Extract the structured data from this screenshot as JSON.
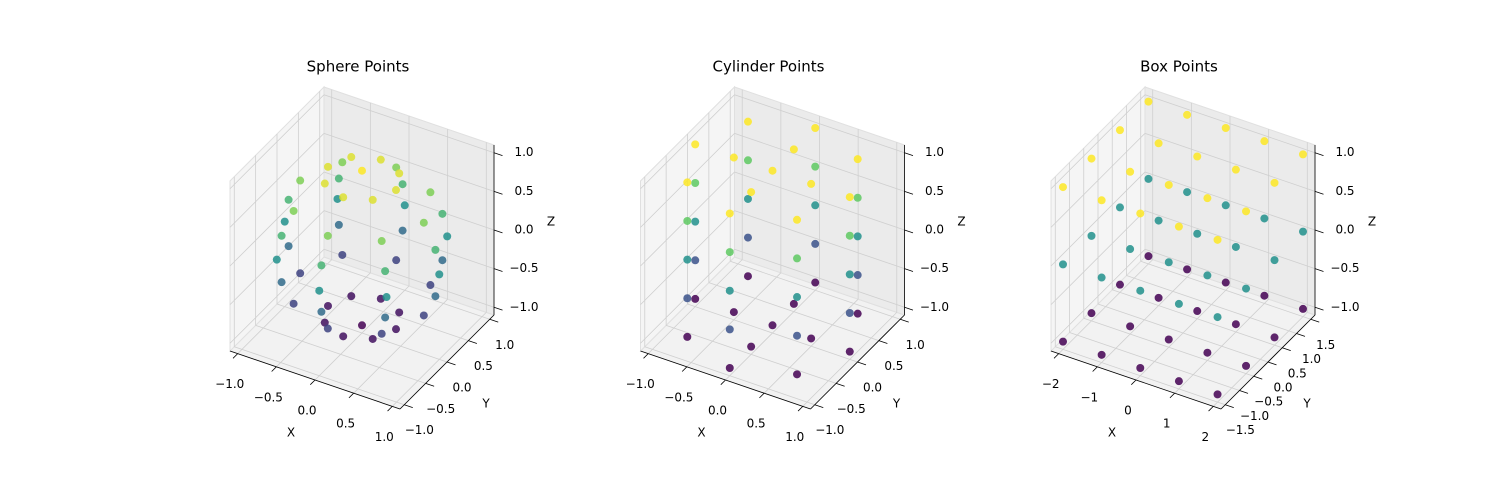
{
  "chart_data": [
    {
      "type": "scatter3d",
      "title": "Sphere Points",
      "xlabel": "X",
      "ylabel": "Y",
      "zlabel": "Z",
      "colormap": [
        "#440154",
        "#3b528b",
        "#21918c",
        "#5ec962",
        "#fde725"
      ],
      "xlim": [
        -1.1,
        1.1
      ],
      "ylim": [
        -1.1,
        1.1
      ],
      "zlim": [
        -1.1,
        1.1
      ],
      "xticks": [
        {
          "value": -1,
          "label": "−1.0"
        },
        {
          "value": -0.5,
          "label": "−0.5"
        },
        {
          "value": 0,
          "label": "0.0"
        },
        {
          "value": 0.5,
          "label": "0.5"
        },
        {
          "value": 1,
          "label": "1.0"
        }
      ],
      "yticks": [
        {
          "value": -1,
          "label": "−1.0"
        },
        {
          "value": -0.5,
          "label": "−0.5"
        },
        {
          "value": 0,
          "label": "0.0"
        },
        {
          "value": 0.5,
          "label": "0.5"
        },
        {
          "value": 1,
          "label": "1.0"
        }
      ],
      "zticks": [
        {
          "value": -1,
          "label": "−1.0"
        },
        {
          "value": -0.5,
          "label": "−0.5"
        },
        {
          "value": 0,
          "label": "0.0"
        },
        {
          "value": 0.5,
          "label": "0.5"
        },
        {
          "value": 1,
          "label": "1.0"
        }
      ],
      "x": [
        0.44,
        0.31,
        0,
        -0.31,
        -0.44,
        -0.31,
        0,
        0.31,
        0.8,
        0.57,
        0,
        -0.57,
        -0.8,
        -0.57,
        0,
        0.57,
        0.95,
        0.67,
        0,
        -0.67,
        -0.95,
        -0.67,
        0,
        0.67,
        1,
        0.71,
        0,
        -0.71,
        -1,
        -0.71,
        0,
        0.71,
        0.95,
        0.67,
        0,
        -0.67,
        -0.95,
        -0.67,
        0,
        0.67,
        0.8,
        0.57,
        0,
        -0.57,
        -0.8,
        -0.57,
        0,
        0.57,
        0.44,
        0.31,
        0,
        -0.31,
        -0.44,
        -0.31,
        0,
        0.31,
        0,
        0
      ],
      "y": [
        0,
        0.31,
        0.44,
        0.31,
        0,
        -0.31,
        -0.44,
        -0.31,
        0,
        0.57,
        0.8,
        0.57,
        0,
        -0.57,
        -0.8,
        -0.57,
        0,
        0.67,
        0.95,
        0.67,
        0,
        -0.67,
        -0.95,
        -0.67,
        0,
        0.71,
        1,
        0.71,
        0,
        -0.71,
        -1,
        -0.71,
        0,
        0.67,
        0.95,
        0.67,
        0,
        -0.67,
        -0.95,
        -0.67,
        0,
        0.57,
        0.8,
        0.57,
        0,
        -0.57,
        -0.8,
        -0.57,
        0,
        0.31,
        0.44,
        0.31,
        0,
        -0.31,
        -0.44,
        -0.31,
        0,
        0
      ],
      "z": [
        -0.9,
        -0.9,
        -0.9,
        -0.9,
        -0.9,
        -0.9,
        -0.9,
        -0.9,
        -0.6,
        -0.6,
        -0.6,
        -0.6,
        -0.6,
        -0.6,
        -0.6,
        -0.6,
        -0.3,
        -0.3,
        -0.3,
        -0.3,
        -0.3,
        -0.3,
        -0.3,
        -0.3,
        0,
        0,
        0,
        0,
        0,
        0,
        0,
        0,
        0.3,
        0.3,
        0.3,
        0.3,
        0.3,
        0.3,
        0.3,
        0.3,
        0.6,
        0.6,
        0.6,
        0.6,
        0.6,
        0.6,
        0.6,
        0.6,
        0.9,
        0.9,
        0.9,
        0.9,
        0.9,
        0.9,
        0.9,
        0.9,
        -1,
        1
      ]
    },
    {
      "type": "scatter3d",
      "title": "Cylinder Points",
      "xlabel": "X",
      "ylabel": "Y",
      "zlabel": "Z",
      "colormap": [
        "#440154",
        "#3b528b",
        "#21918c",
        "#5ec962",
        "#fde725"
      ],
      "xlim": [
        -1.1,
        1.1
      ],
      "ylim": [
        -1.1,
        1.1
      ],
      "zlim": [
        -1.1,
        1.1
      ],
      "xticks": [
        {
          "value": -1,
          "label": "−1.0"
        },
        {
          "value": -0.5,
          "label": "−0.5"
        },
        {
          "value": 0,
          "label": "0.0"
        },
        {
          "value": 0.5,
          "label": "0.5"
        },
        {
          "value": 1,
          "label": "1.0"
        }
      ],
      "yticks": [
        {
          "value": -1,
          "label": "−1.0"
        },
        {
          "value": -0.5,
          "label": "−0.5"
        },
        {
          "value": 0,
          "label": "0.0"
        },
        {
          "value": 0.5,
          "label": "0.5"
        },
        {
          "value": 1,
          "label": "1.0"
        }
      ],
      "zticks": [
        {
          "value": -1,
          "label": "−1.0"
        },
        {
          "value": -0.5,
          "label": "−0.5"
        },
        {
          "value": 0,
          "label": "0.0"
        },
        {
          "value": 0.5,
          "label": "0.5"
        },
        {
          "value": 1,
          "label": "1.0"
        }
      ],
      "x": [
        1,
        0.71,
        0,
        -0.71,
        -1,
        -0.71,
        0,
        0.71,
        1,
        0.71,
        0,
        -0.71,
        -1,
        -0.71,
        0,
        0.71,
        1,
        0.71,
        0,
        -0.71,
        -1,
        -0.71,
        0,
        0.71,
        1,
        0.71,
        0,
        -0.71,
        -1,
        -0.71,
        0,
        0.71,
        1,
        0.71,
        0,
        -0.71,
        -1,
        -0.71,
        0,
        0.71,
        0.5,
        0,
        -0.5,
        0,
        0,
        0.5,
        0,
        -0.5,
        0,
        0
      ],
      "y": [
        0,
        0.71,
        1,
        0.71,
        0,
        -0.71,
        -1,
        -0.71,
        0,
        0.71,
        1,
        0.71,
        0,
        -0.71,
        -1,
        -0.71,
        0,
        0.71,
        1,
        0.71,
        0,
        -0.71,
        -1,
        -0.71,
        0,
        0.71,
        1,
        0.71,
        0,
        -0.71,
        -1,
        -0.71,
        0,
        0.71,
        1,
        0.71,
        0,
        -0.71,
        -1,
        -0.71,
        0,
        0.5,
        0,
        -0.5,
        0,
        0,
        0.5,
        0,
        -0.5,
        0
      ],
      "z": [
        -1,
        -1,
        -1,
        -1,
        -1,
        -1,
        -1,
        -1,
        -0.5,
        -0.5,
        -0.5,
        -0.5,
        -0.5,
        -0.5,
        -0.5,
        -0.5,
        0,
        0,
        0,
        0,
        0,
        0,
        0,
        0,
        0.5,
        0.5,
        0.5,
        0.5,
        0.5,
        0.5,
        0.5,
        0.5,
        1,
        1,
        1,
        1,
        1,
        1,
        1,
        1,
        -1,
        -1,
        -1,
        -1,
        -1,
        1,
        1,
        1,
        1,
        1
      ]
    },
    {
      "type": "scatter3d",
      "title": "Box Points",
      "xlabel": "X",
      "ylabel": "Y",
      "zlabel": "Z",
      "colormap": [
        "#440154",
        "#3b528b",
        "#21918c",
        "#5ec962",
        "#fde725"
      ],
      "xlim": [
        -2.2,
        2.2
      ],
      "ylim": [
        -1.65,
        1.65
      ],
      "zlim": [
        -1.1,
        1.1
      ],
      "xticks": [
        {
          "value": -2,
          "label": "−2"
        },
        {
          "value": -1,
          "label": "−1"
        },
        0,
        1,
        2
      ],
      "yticks": [
        {
          "value": -1.5,
          "label": "−1.5"
        },
        {
          "value": -1,
          "label": "−1.0"
        },
        {
          "value": -0.5,
          "label": "−0.5"
        },
        {
          "value": 0,
          "label": "0.0"
        },
        {
          "value": 0.5,
          "label": "0.5"
        },
        {
          "value": 1,
          "label": "1.0"
        },
        {
          "value": 1.5,
          "label": "1.5"
        }
      ],
      "zticks": [
        {
          "value": -1,
          "label": "−1.0"
        },
        {
          "value": -0.5,
          "label": "−0.5"
        },
        {
          "value": 0,
          "label": "0.0"
        },
        {
          "value": 0.5,
          "label": "0.5"
        },
        {
          "value": 1,
          "label": "1.0"
        }
      ],
      "x": [
        -2,
        -1,
        0,
        1,
        2,
        -2,
        -1,
        0,
        1,
        2,
        -2,
        -1,
        0,
        1,
        2,
        -2,
        -1,
        0,
        1,
        2,
        -2,
        -1,
        0,
        1,
        2,
        -2,
        -1,
        0,
        1,
        2,
        -2,
        -1,
        0,
        1,
        2,
        -2,
        -1,
        0,
        1,
        2,
        -2,
        -1,
        0,
        1,
        2,
        -2,
        -1,
        0,
        1,
        2,
        -2,
        -1,
        0,
        1,
        2,
        -2,
        -1,
        0,
        1,
        2
      ],
      "y": [
        -1.5,
        -1.5,
        -1.5,
        -1.5,
        -1.5,
        -0.5,
        -0.5,
        -0.5,
        -0.5,
        -0.5,
        0.5,
        0.5,
        0.5,
        0.5,
        0.5,
        1.5,
        1.5,
        1.5,
        1.5,
        1.5,
        -1.5,
        -1.5,
        -1.5,
        -1.5,
        -1.5,
        -0.5,
        -0.5,
        -0.5,
        -0.5,
        -0.5,
        0.5,
        0.5,
        0.5,
        0.5,
        0.5,
        1.5,
        1.5,
        1.5,
        1.5,
        1.5,
        -1.5,
        -1.5,
        -1.5,
        -1.5,
        -1.5,
        -0.5,
        -0.5,
        -0.5,
        -0.5,
        -0.5,
        0.5,
        0.5,
        0.5,
        0.5,
        0.5,
        1.5,
        1.5,
        1.5,
        1.5,
        1.5
      ],
      "z": [
        -1,
        -1,
        -1,
        -1,
        -1,
        -1,
        -1,
        -1,
        -1,
        -1,
        -1,
        -1,
        -1,
        -1,
        -1,
        -1,
        -1,
        -1,
        -1,
        -1,
        0,
        0,
        0,
        0,
        0,
        0,
        0,
        0,
        0,
        0,
        0,
        0,
        0,
        0,
        0,
        0,
        0,
        0,
        0,
        0,
        1,
        1,
        1,
        1,
        1,
        1,
        1,
        1,
        1,
        1,
        1,
        1,
        1,
        1,
        1,
        1,
        1,
        1,
        1,
        1
      ]
    }
  ]
}
